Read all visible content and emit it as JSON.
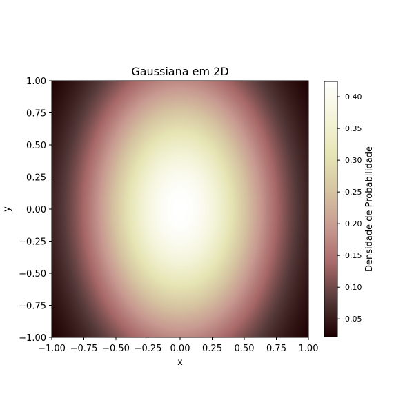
{
  "chart_data": {
    "type": "heatmap",
    "title": "Gaussiana em 2D",
    "xlabel": "x",
    "ylabel": "y",
    "xlim": [
      -1.0,
      1.0
    ],
    "ylim": [
      -1.0,
      1.0
    ],
    "x_ticks": [
      -1.0,
      -0.75,
      -0.5,
      -0.25,
      0.0,
      0.25,
      0.5,
      0.75,
      1.0
    ],
    "x_tick_labels": [
      "−1.00",
      "−0.75",
      "−0.50",
      "−0.25",
      "0.00",
      "0.25",
      "0.50",
      "0.75",
      "1.00"
    ],
    "y_ticks": [
      -1.0,
      -0.75,
      -0.5,
      -0.25,
      0.0,
      0.25,
      0.5,
      0.75,
      1.0
    ],
    "y_tick_labels": [
      "−1.00",
      "−0.75",
      "−0.50",
      "−0.25",
      "0.00",
      "0.25",
      "0.50",
      "0.75",
      "1.00"
    ],
    "function": "bivariate gaussian",
    "mean": [
      0.0,
      0.0
    ],
    "sigma_x": 0.5,
    "sigma_y": 0.75,
    "colormap": "pink",
    "colorbar": {
      "label": "Densidade de Probabilidade",
      "range": [
        0.022,
        0.424
      ],
      "ticks": [
        0.05,
        0.1,
        0.15,
        0.2,
        0.25,
        0.3,
        0.35,
        0.4
      ],
      "tick_labels": [
        "0.05",
        "0.10",
        "0.15",
        "0.20",
        "0.25",
        "0.30",
        "0.35",
        "0.40"
      ]
    },
    "grid": false,
    "colors": {
      "cmap_stops": [
        "#1e0000",
        "#533838",
        "#a86868",
        "#c89a91",
        "#d6c4a1",
        "#e6e5b4",
        "#f4f4da",
        "#ffffff"
      ]
    }
  }
}
